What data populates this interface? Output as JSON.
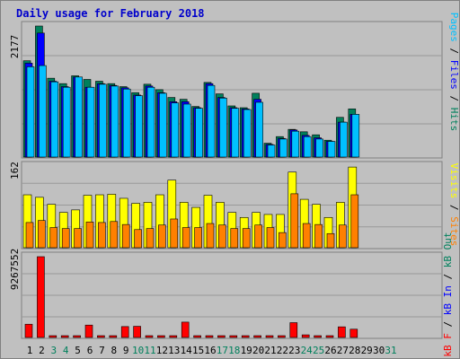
{
  "title": "Daily usage for February 2018",
  "colors": {
    "hits": "#00805c",
    "files": "#0000ff",
    "pages": "#00c0ff",
    "visits": "#ffff00",
    "sites": "#ff8000",
    "kbf": "#ff0000",
    "kbin": "#0000ff",
    "kbout": "#00805c",
    "weekday_label": "#000000",
    "weekend_label": "#00805c"
  },
  "chart_data": [
    {
      "type": "bar",
      "panel": "top",
      "scale_label": "2177",
      "ymax": 2177,
      "right_label": {
        "pages": "Pages",
        "files": "Files",
        "hits": "Hits",
        "sep": " / "
      },
      "categories": [
        "1",
        "2",
        "3",
        "4",
        "5",
        "6",
        "7",
        "8",
        "9",
        "10",
        "11",
        "12",
        "13",
        "14",
        "15",
        "16",
        "17",
        "18",
        "19",
        "20",
        "21",
        "22",
        "23",
        "24",
        "25",
        "26",
        "27",
        "28",
        "29",
        "30",
        "31"
      ],
      "weekend_days": [
        "3",
        "4",
        "10",
        "11",
        "17",
        "18",
        "24",
        "25",
        "31"
      ],
      "series": [
        {
          "name": "Hits",
          "values": [
            1600,
            2177,
            1310,
            1220,
            1350,
            1290,
            1260,
            1220,
            1170,
            1070,
            1210,
            1120,
            990,
            960,
            840,
            1240,
            1050,
            850,
            820,
            1060,
            230,
            340,
            460,
            420,
            370,
            280,
            660,
            800,
            0,
            0,
            0
          ]
        },
        {
          "name": "Files",
          "values": [
            1560,
            2060,
            1260,
            1170,
            1330,
            1160,
            1220,
            1190,
            1150,
            1030,
            1180,
            1070,
            920,
            920,
            820,
            1220,
            990,
            820,
            800,
            960,
            210,
            310,
            450,
            360,
            320,
            260,
            580,
            710,
            0,
            0,
            0
          ]
        },
        {
          "name": "Pages",
          "values": [
            1500,
            1520,
            1250,
            1160,
            1330,
            1160,
            1210,
            1180,
            1130,
            1020,
            1160,
            1060,
            900,
            880,
            810,
            1190,
            980,
            810,
            790,
            910,
            200,
            300,
            430,
            340,
            300,
            260,
            580,
            710,
            0,
            0,
            0
          ]
        }
      ]
    },
    {
      "type": "bar",
      "panel": "middle",
      "scale_label": "162",
      "ymax": 162,
      "right_label": {
        "visits": "Visits",
        "sites": "Sites",
        "sep": " / "
      },
      "categories": [
        "1",
        "2",
        "3",
        "4",
        "5",
        "6",
        "7",
        "8",
        "9",
        "10",
        "11",
        "12",
        "13",
        "14",
        "15",
        "16",
        "17",
        "18",
        "19",
        "20",
        "21",
        "22",
        "23",
        "24",
        "25",
        "26",
        "27",
        "28",
        "29",
        "30",
        "31"
      ],
      "series": [
        {
          "name": "Visits",
          "values": [
            105,
            100,
            86,
            70,
            75,
            104,
            105,
            106,
            98,
            88,
            90,
            105,
            134,
            90,
            80,
            104,
            90,
            70,
            60,
            70,
            66,
            66,
            150,
            96,
            86,
            60,
            90,
            160,
            0,
            0,
            0
          ]
        },
        {
          "name": "Sites",
          "values": [
            50,
            54,
            40,
            38,
            38,
            51,
            50,
            52,
            46,
            36,
            38,
            45,
            57,
            40,
            40,
            48,
            45,
            38,
            38,
            45,
            40,
            30,
            107,
            48,
            46,
            28,
            45,
            105,
            0,
            0,
            0
          ]
        }
      ]
    },
    {
      "type": "bar",
      "panel": "bottom",
      "scale_label": "9267552",
      "ymax": 9267552,
      "right_label": {
        "kbf": "kB F",
        "kbin": "kB In",
        "kbout": "kB Out",
        "sep": " / "
      },
      "categories": [
        "1",
        "2",
        "3",
        "4",
        "5",
        "6",
        "7",
        "8",
        "9",
        "10",
        "11",
        "12",
        "13",
        "14",
        "15",
        "16",
        "17",
        "18",
        "19",
        "20",
        "21",
        "22",
        "23",
        "24",
        "25",
        "26",
        "27",
        "28",
        "29",
        "30",
        "31"
      ],
      "series": [
        {
          "name": "kB F",
          "values": [
            1520000,
            9267552,
            90000,
            90000,
            90000,
            1420000,
            200000,
            200000,
            1250000,
            1280000,
            90000,
            90000,
            90000,
            1760000,
            90000,
            90000,
            90000,
            90000,
            90000,
            200000,
            90000,
            90000,
            1700000,
            300000,
            90000,
            90000,
            1220000,
            950000,
            0,
            0,
            0
          ]
        }
      ]
    }
  ]
}
